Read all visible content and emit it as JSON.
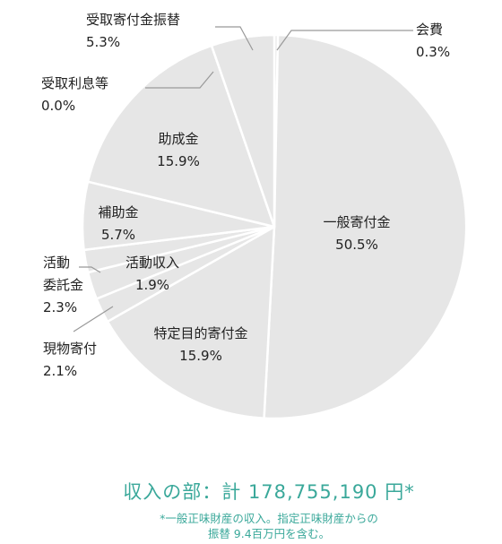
{
  "chart_data": {
    "type": "pie",
    "title": "",
    "slices": [
      {
        "label": "会費",
        "percent": "0.3%",
        "value": 0.3
      },
      {
        "label": "一般寄付金",
        "percent": "50.5%",
        "value": 50.5
      },
      {
        "label": "特定目的寄付金",
        "percent": "15.9%",
        "value": 15.9
      },
      {
        "label": "現物寄付",
        "percent": "2.1%",
        "value": 2.1
      },
      {
        "label": "活動委託金",
        "label_lines": [
          "活動",
          "委託金"
        ],
        "percent": "2.3%",
        "value": 2.3
      },
      {
        "label": "活動収入",
        "percent": "1.9%",
        "value": 1.9
      },
      {
        "label": "補助金",
        "percent": "5.7%",
        "value": 5.7
      },
      {
        "label": "助成金",
        "percent": "15.9%",
        "value": 15.9
      },
      {
        "label": "受取利息等",
        "percent": "0.0%",
        "value": 0.0
      },
      {
        "label": "受取寄付金振替",
        "percent": "5.3%",
        "value": 5.3
      }
    ],
    "colors": {
      "slice": "#e6e6e6",
      "border": "#ffffff",
      "leader": "#999999",
      "accent": "#3aa89a"
    }
  },
  "summary": {
    "total_text": "収入の部：計 178,755,190 円*",
    "note_line1": "*一般正味財産の収入。指定正味財産からの",
    "note_line2": "振替 9.4百万円を含む。"
  }
}
